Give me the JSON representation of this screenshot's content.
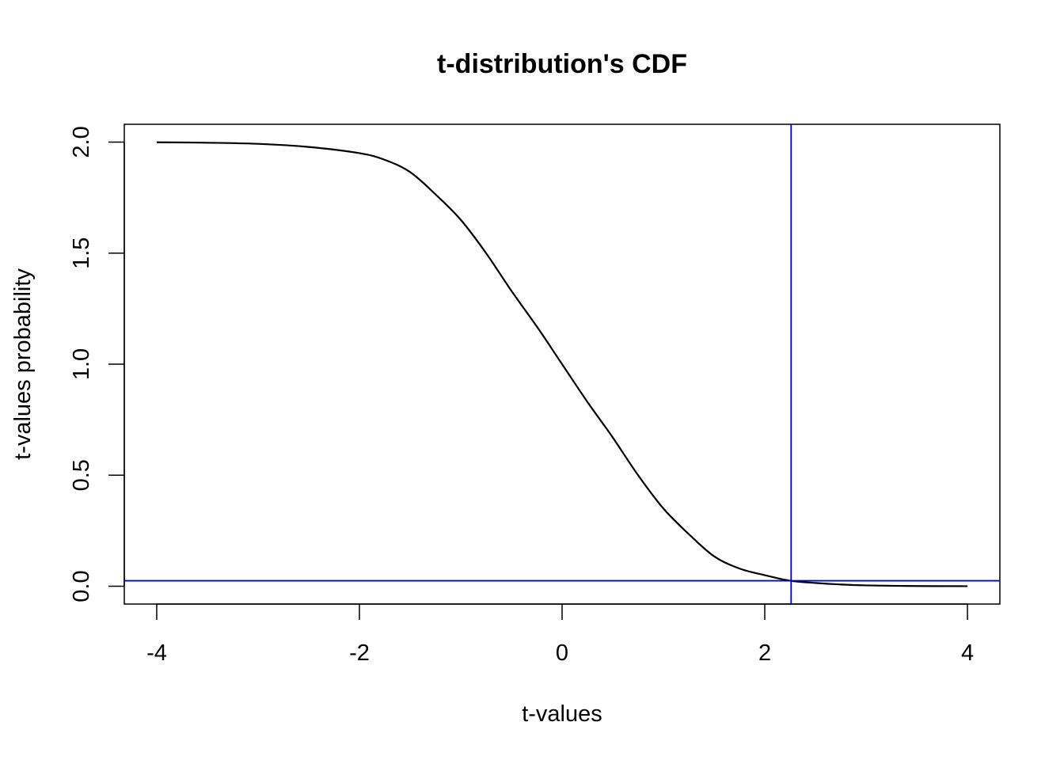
{
  "chart_data": {
    "type": "line",
    "title": "t-distribution's CDF",
    "xlabel": "t-values",
    "ylabel": "t-values probability",
    "xlim": [
      -4.32,
      4.32
    ],
    "ylim": [
      -0.08,
      2.08
    ],
    "x_ticks": [
      -4,
      -2,
      0,
      2,
      4
    ],
    "x_tick_labels": [
      "-4",
      "-2",
      "0",
      "2",
      "4"
    ],
    "y_ticks": [
      0,
      0.5,
      1,
      1.5,
      2
    ],
    "y_tick_labels": [
      "0.0",
      "0.5",
      "1.0",
      "1.5",
      "2.0"
    ],
    "grid": false,
    "series": [
      {
        "color": "#000000",
        "x": [
          -4.0,
          -3.5,
          -3.0,
          -2.5,
          -2.0,
          -1.75,
          -1.5,
          -1.25,
          -1.0,
          -0.75,
          -0.5,
          -0.25,
          0.0,
          0.25,
          0.5,
          0.75,
          1.0,
          1.25,
          1.5,
          1.75,
          2.0,
          2.25,
          2.5,
          2.75,
          3.0,
          3.5,
          4.0
        ],
        "y": [
          1.999,
          1.997,
          1.992,
          1.978,
          1.95,
          1.92,
          1.865,
          1.765,
          1.65,
          1.5,
          1.33,
          1.17,
          1.0,
          0.83,
          0.67,
          0.5,
          0.35,
          0.235,
          0.135,
          0.08,
          0.05,
          0.025,
          0.015,
          0.008,
          0.004,
          0.001,
          0.0004
        ]
      }
    ],
    "reference_lines": {
      "color": "#0000CD",
      "vertical_x": 2.26,
      "horizontal_y": 0.025
    }
  }
}
